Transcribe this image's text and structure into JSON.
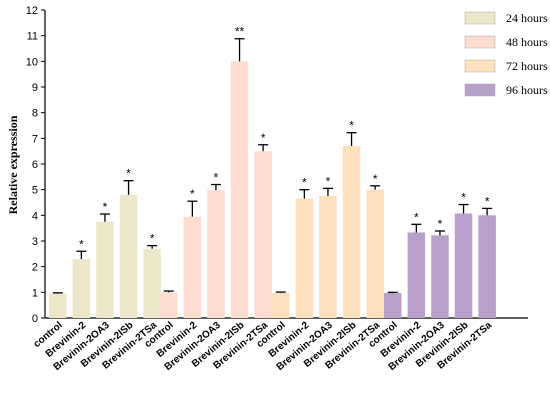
{
  "chart_data": {
    "type": "bar",
    "title": "",
    "xlabel": "",
    "ylabel": "Relative expression",
    "ylim": [
      0,
      12
    ],
    "yticks": [
      0,
      1,
      2,
      3,
      4,
      5,
      6,
      7,
      8,
      9,
      10,
      11,
      12
    ],
    "grid": false,
    "legend_position": "top-right",
    "categories": [
      "control",
      "Brevinin-2",
      "Brevinin-2OA3",
      "Brevinin-2ISb",
      "Brevinin-2TSa"
    ],
    "series": [
      {
        "name": "24 hours",
        "color": "#ece7cb",
        "values": [
          0.95,
          2.3,
          3.75,
          4.8,
          2.7
        ],
        "errors": [
          0.03,
          0.3,
          0.3,
          0.55,
          0.12
        ],
        "significance": [
          "",
          "*",
          "*",
          "*",
          "*"
        ]
      },
      {
        "name": "48 hours",
        "color": "#fddcd2",
        "values": [
          1.0,
          3.95,
          4.98,
          10.0,
          6.5
        ],
        "errors": [
          0.05,
          0.6,
          0.22,
          0.88,
          0.25
        ],
        "significance": [
          "",
          "*",
          "*",
          "**",
          "*"
        ]
      },
      {
        "name": "72 hours",
        "color": "#fde1bd",
        "values": [
          0.98,
          4.65,
          4.75,
          6.7,
          5.0
        ],
        "errors": [
          0.03,
          0.35,
          0.3,
          0.52,
          0.15
        ],
        "significance": [
          "",
          "*",
          "*",
          "*",
          "*"
        ]
      },
      {
        "name": "96 hours",
        "color": "#b7a1cb",
        "values": [
          0.97,
          3.33,
          3.22,
          4.07,
          4.0
        ],
        "errors": [
          0.03,
          0.32,
          0.17,
          0.35,
          0.27
        ],
        "significance": [
          "",
          "*",
          "*",
          "*",
          "*"
        ]
      }
    ]
  }
}
